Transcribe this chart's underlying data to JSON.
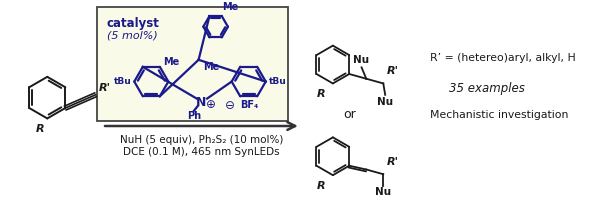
{
  "bg_color": "#ffffff",
  "box_bg_color": "#fafae8",
  "box_edge_color": "#444444",
  "dark_blue": "#1a1a8c",
  "black": "#1a1a1a",
  "arrow_color": "#555555",
  "catalyst_text": "catalyst",
  "catalyst_mol": "(5 mol%)",
  "reagents_line1": "NuH (5 equiv), Ph₂S₂ (10 mol%)",
  "reagents_line2": "DCE (0.1 M), 465 nm SynLEDs",
  "rgroup_text": "R’ = (hetereo)aryl, alkyl, H",
  "examples_text": "35 examples",
  "mechanistic_text": "Mechanistic investigation",
  "or_text": "or"
}
